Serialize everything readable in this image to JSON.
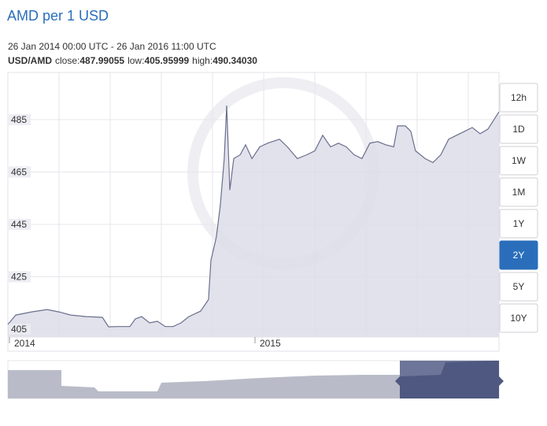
{
  "chart_data": {
    "type": "area",
    "title": "AMD per 1 USD",
    "subtitle": "26 Jan 2014 00:00 UTC - 26 Jan 2016 11:00 UTC",
    "pair": "USD/AMD",
    "stats": [
      {
        "label": "close:",
        "value": "487.99055"
      },
      {
        "label": "low:",
        "value": "405.95999"
      },
      {
        "label": "high:",
        "value": "490.34030"
      }
    ],
    "x": [
      2014.0,
      2014.032,
      2014.096,
      2014.16,
      2014.208,
      2014.256,
      2014.321,
      2014.385,
      2014.41,
      2014.449,
      2014.497,
      2014.519,
      2014.545,
      2014.577,
      2014.609,
      2014.641,
      2014.673,
      2014.705,
      2014.737,
      2014.785,
      2014.817,
      2014.827,
      2014.849,
      2014.865,
      2014.881,
      2014.891,
      2014.904,
      2014.92,
      2014.946,
      2014.968,
      2014.994,
      2015.026,
      2015.058,
      2015.106,
      2015.138,
      2015.179,
      2015.218,
      2015.25,
      2015.282,
      2015.314,
      2015.346,
      2015.378,
      2015.41,
      2015.442,
      2015.474,
      2015.506,
      2015.538,
      2015.571,
      2015.587,
      2015.619,
      2015.641,
      2015.66,
      2015.699,
      2015.731,
      2015.763,
      2015.795,
      2015.827,
      2015.859,
      2015.891,
      2015.923,
      2015.955,
      2016.0
    ],
    "series": [
      {
        "color": "#6a6f8e",
        "fill": "#dcdde8",
        "values": [
          406.8,
          410.4,
          411.6,
          412.5,
          411.6,
          410.4,
          409.8,
          409.5,
          405.9,
          406.0,
          406.0,
          408.9,
          409.8,
          407.4,
          408.0,
          406.0,
          406.0,
          407.4,
          409.8,
          411.9,
          416.3,
          431.3,
          440.2,
          452.2,
          470.1,
          490.3,
          458.1,
          470.1,
          471.6,
          475.4,
          470.1,
          474.6,
          476.0,
          477.5,
          474.6,
          470.1,
          471.6,
          473.1,
          479.0,
          474.6,
          476.0,
          474.6,
          471.6,
          470.1,
          476.0,
          476.6,
          475.4,
          474.6,
          482.6,
          482.6,
          480.5,
          473.1,
          470.1,
          468.6,
          471.6,
          477.5,
          479.0,
          480.5,
          482.0,
          479.6,
          481.4,
          488.0
        ]
      }
    ],
    "xlim": [
      2014,
      2016
    ],
    "xticks": [
      2014,
      2015
    ],
    "ylim": [
      402,
      503
    ],
    "yticks": [
      405,
      425,
      445,
      465,
      485
    ],
    "grid": true
  },
  "controls": {
    "ranges": [
      "12h",
      "1D",
      "1W",
      "1M",
      "1Y",
      "2Y",
      "5Y",
      "10Y"
    ],
    "active": "2Y"
  }
}
